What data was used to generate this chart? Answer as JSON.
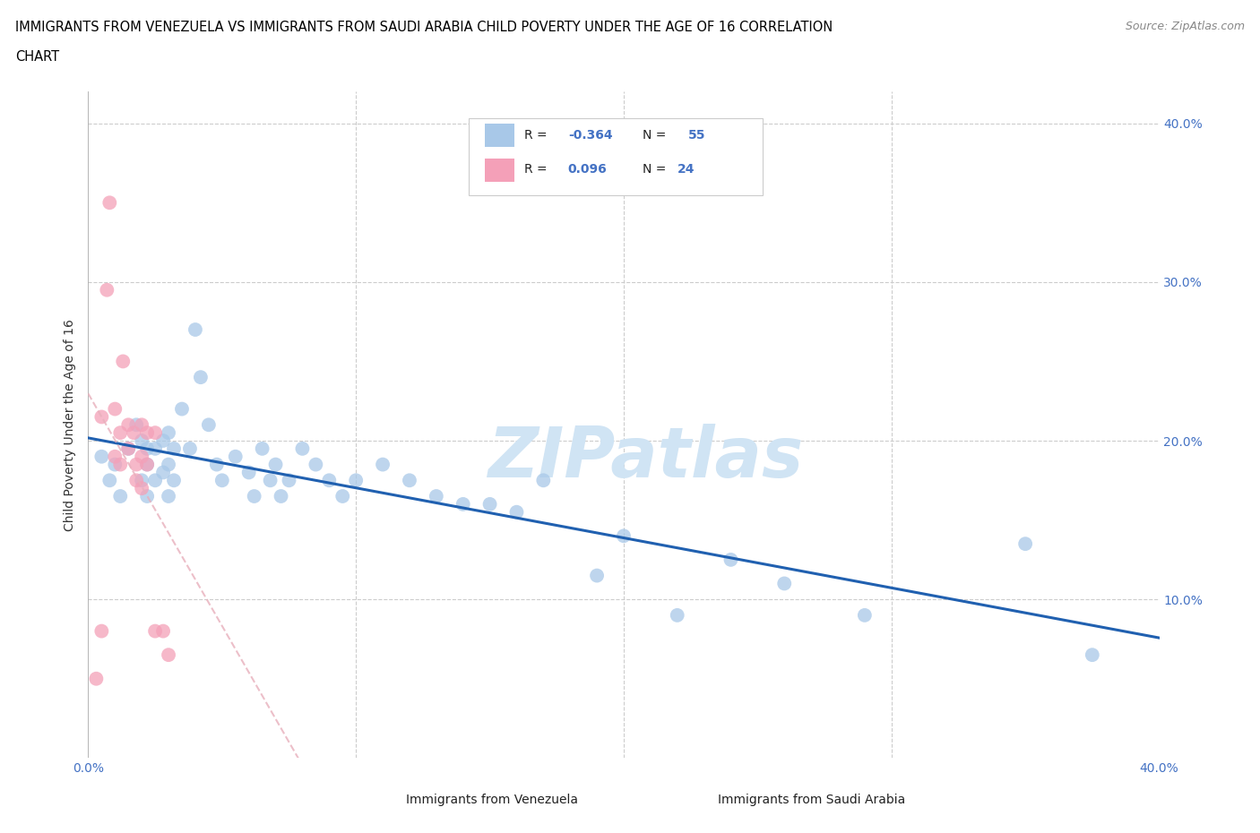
{
  "title_line1": "IMMIGRANTS FROM VENEZUELA VS IMMIGRANTS FROM SAUDI ARABIA CHILD POVERTY UNDER THE AGE OF 16 CORRELATION",
  "title_line2": "CHART",
  "source_text": "Source: ZipAtlas.com",
  "ylabel": "Child Poverty Under the Age of 16",
  "xlim": [
    0.0,
    0.4
  ],
  "ylim": [
    0.0,
    0.42
  ],
  "yticks": [
    0.1,
    0.2,
    0.3,
    0.4
  ],
  "ytick_labels": [
    "10.0%",
    "20.0%",
    "30.0%",
    "40.0%"
  ],
  "color_venezuela": "#a8c8e8",
  "color_saudi": "#f4a0b8",
  "color_trend_venezuela": "#2060b0",
  "color_trend_saudi": "#e8a0b0",
  "watermark_color": "#d0e4f4",
  "background_color": "#ffffff",
  "tick_color": "#4472c4",
  "venezuela_x": [
    0.005,
    0.008,
    0.01,
    0.012,
    0.015,
    0.018,
    0.02,
    0.02,
    0.022,
    0.022,
    0.022,
    0.025,
    0.025,
    0.028,
    0.028,
    0.03,
    0.03,
    0.03,
    0.032,
    0.032,
    0.035,
    0.038,
    0.04,
    0.042,
    0.045,
    0.048,
    0.05,
    0.055,
    0.06,
    0.062,
    0.065,
    0.068,
    0.07,
    0.072,
    0.075,
    0.08,
    0.085,
    0.09,
    0.095,
    0.1,
    0.11,
    0.12,
    0.13,
    0.14,
    0.15,
    0.16,
    0.17,
    0.19,
    0.2,
    0.22,
    0.24,
    0.26,
    0.29,
    0.35,
    0.375
  ],
  "venezuela_y": [
    0.19,
    0.175,
    0.185,
    0.165,
    0.195,
    0.21,
    0.2,
    0.175,
    0.195,
    0.185,
    0.165,
    0.195,
    0.175,
    0.2,
    0.18,
    0.205,
    0.185,
    0.165,
    0.195,
    0.175,
    0.22,
    0.195,
    0.27,
    0.24,
    0.21,
    0.185,
    0.175,
    0.19,
    0.18,
    0.165,
    0.195,
    0.175,
    0.185,
    0.165,
    0.175,
    0.195,
    0.185,
    0.175,
    0.165,
    0.175,
    0.185,
    0.175,
    0.165,
    0.16,
    0.16,
    0.155,
    0.175,
    0.115,
    0.14,
    0.09,
    0.125,
    0.11,
    0.09,
    0.135,
    0.065
  ],
  "saudi_x": [
    0.003,
    0.005,
    0.005,
    0.007,
    0.008,
    0.01,
    0.01,
    0.012,
    0.012,
    0.013,
    0.015,
    0.015,
    0.017,
    0.018,
    0.018,
    0.02,
    0.02,
    0.02,
    0.022,
    0.022,
    0.025,
    0.025,
    0.028,
    0.03
  ],
  "saudi_y": [
    0.05,
    0.08,
    0.215,
    0.295,
    0.35,
    0.22,
    0.19,
    0.205,
    0.185,
    0.25,
    0.21,
    0.195,
    0.205,
    0.185,
    0.175,
    0.21,
    0.19,
    0.17,
    0.205,
    0.185,
    0.08,
    0.205,
    0.08,
    0.065
  ]
}
